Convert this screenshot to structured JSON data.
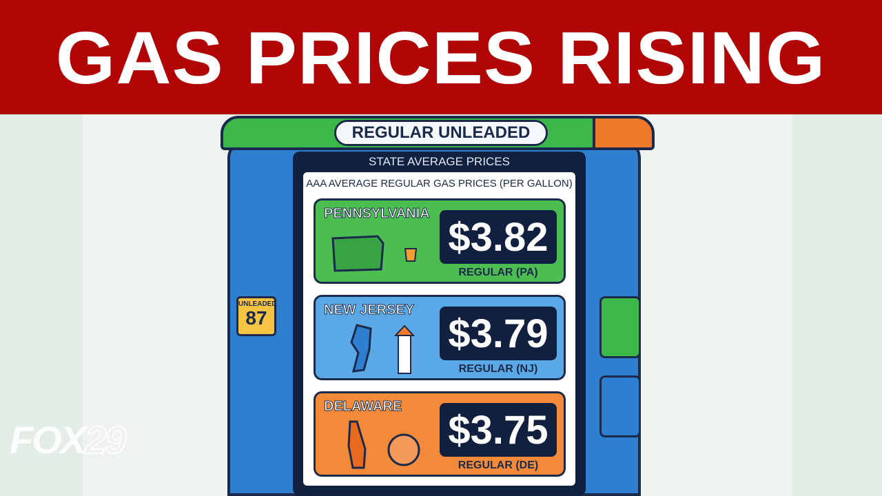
{
  "headline": {
    "title": "GAS PRICES RISING"
  },
  "pump": {
    "header": "REGULAR UNLEADED",
    "subheader": "STATE AVERAGE PRICES",
    "grade_label": "UNLEADED",
    "grade": "87"
  },
  "board": {
    "title": "AAA AVERAGE REGULAR GAS PRICES (PER GALLON)",
    "states": [
      {
        "name": "PENNSYLVANIA",
        "price": "$3.82",
        "label": "REGULAR (PA)"
      },
      {
        "name": "NEW JERSEY",
        "price": "$3.79",
        "label": "REGULAR (NJ)"
      },
      {
        "name": "DELAWARE",
        "price": "$3.75",
        "label": "REGULAR (DE)"
      }
    ]
  },
  "logo": {
    "brand": "FOX",
    "number": "29"
  }
}
